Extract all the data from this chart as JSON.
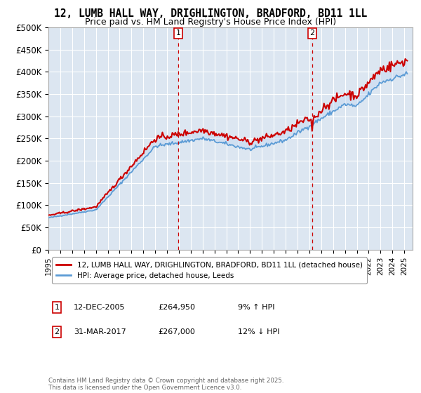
{
  "title": "12, LUMB HALL WAY, DRIGHLINGTON, BRADFORD, BD11 1LL",
  "subtitle": "Price paid vs. HM Land Registry's House Price Index (HPI)",
  "ylim": [
    0,
    500000
  ],
  "yticks": [
    0,
    50000,
    100000,
    150000,
    200000,
    250000,
    300000,
    350000,
    400000,
    450000,
    500000
  ],
  "ytick_labels": [
    "£0",
    "£50K",
    "£100K",
    "£150K",
    "£200K",
    "£250K",
    "£300K",
    "£350K",
    "£400K",
    "£450K",
    "£500K"
  ],
  "xlim_start": 1995.0,
  "xlim_end": 2025.7,
  "sale1_date": 2005.95,
  "sale2_date": 2017.25,
  "sale1_price": 264950,
  "sale2_price": 267000,
  "red_color": "#cc0000",
  "blue_color": "#5b9bd5",
  "fill_color": "#c5d9f1",
  "bg_color": "#dce6f1",
  "legend_label1": "12, LUMB HALL WAY, DRIGHLINGTON, BRADFORD, BD11 1LL (detached house)",
  "legend_label2": "HPI: Average price, detached house, Leeds",
  "footer": "Contains HM Land Registry data © Crown copyright and database right 2025.\nThis data is licensed under the Open Government Licence v3.0."
}
